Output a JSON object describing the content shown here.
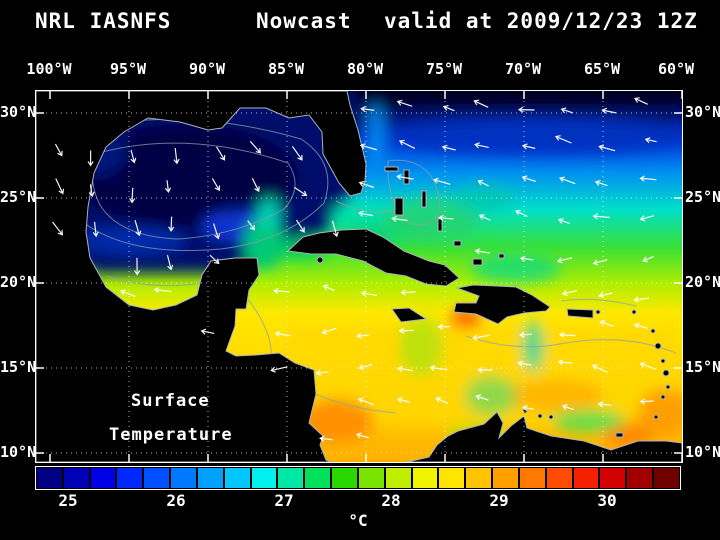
{
  "header": {
    "model": "NRL IASNFS",
    "product": "Nowcast",
    "valid": "valid at 2009/12/23 12Z"
  },
  "map": {
    "overlay_line1": "Surface",
    "overlay_line2": "Temperature",
    "lon_labels": [
      "100°W",
      "95°W",
      "90°W",
      "85°W",
      "80°W",
      "75°W",
      "70°W",
      "65°W",
      "60°W"
    ],
    "lat_labels": [
      "30°N",
      "25°N",
      "20°N",
      "15°N",
      "10°N"
    ]
  },
  "colorbar": {
    "unit": "°C",
    "tick_labels": [
      "25",
      "26",
      "27",
      "28",
      "29",
      "30"
    ],
    "colors": [
      "#000082",
      "#0000b4",
      "#0000e6",
      "#0028ff",
      "#0050ff",
      "#0078ff",
      "#00a0ff",
      "#00c8ff",
      "#00f0f0",
      "#00e8a8",
      "#00e058",
      "#28d800",
      "#78e400",
      "#c0ee00",
      "#f0f400",
      "#ffe400",
      "#ffc400",
      "#ffa000",
      "#ff7800",
      "#ff4c00",
      "#f42000",
      "#d20000",
      "#a20000",
      "#700000"
    ]
  }
}
